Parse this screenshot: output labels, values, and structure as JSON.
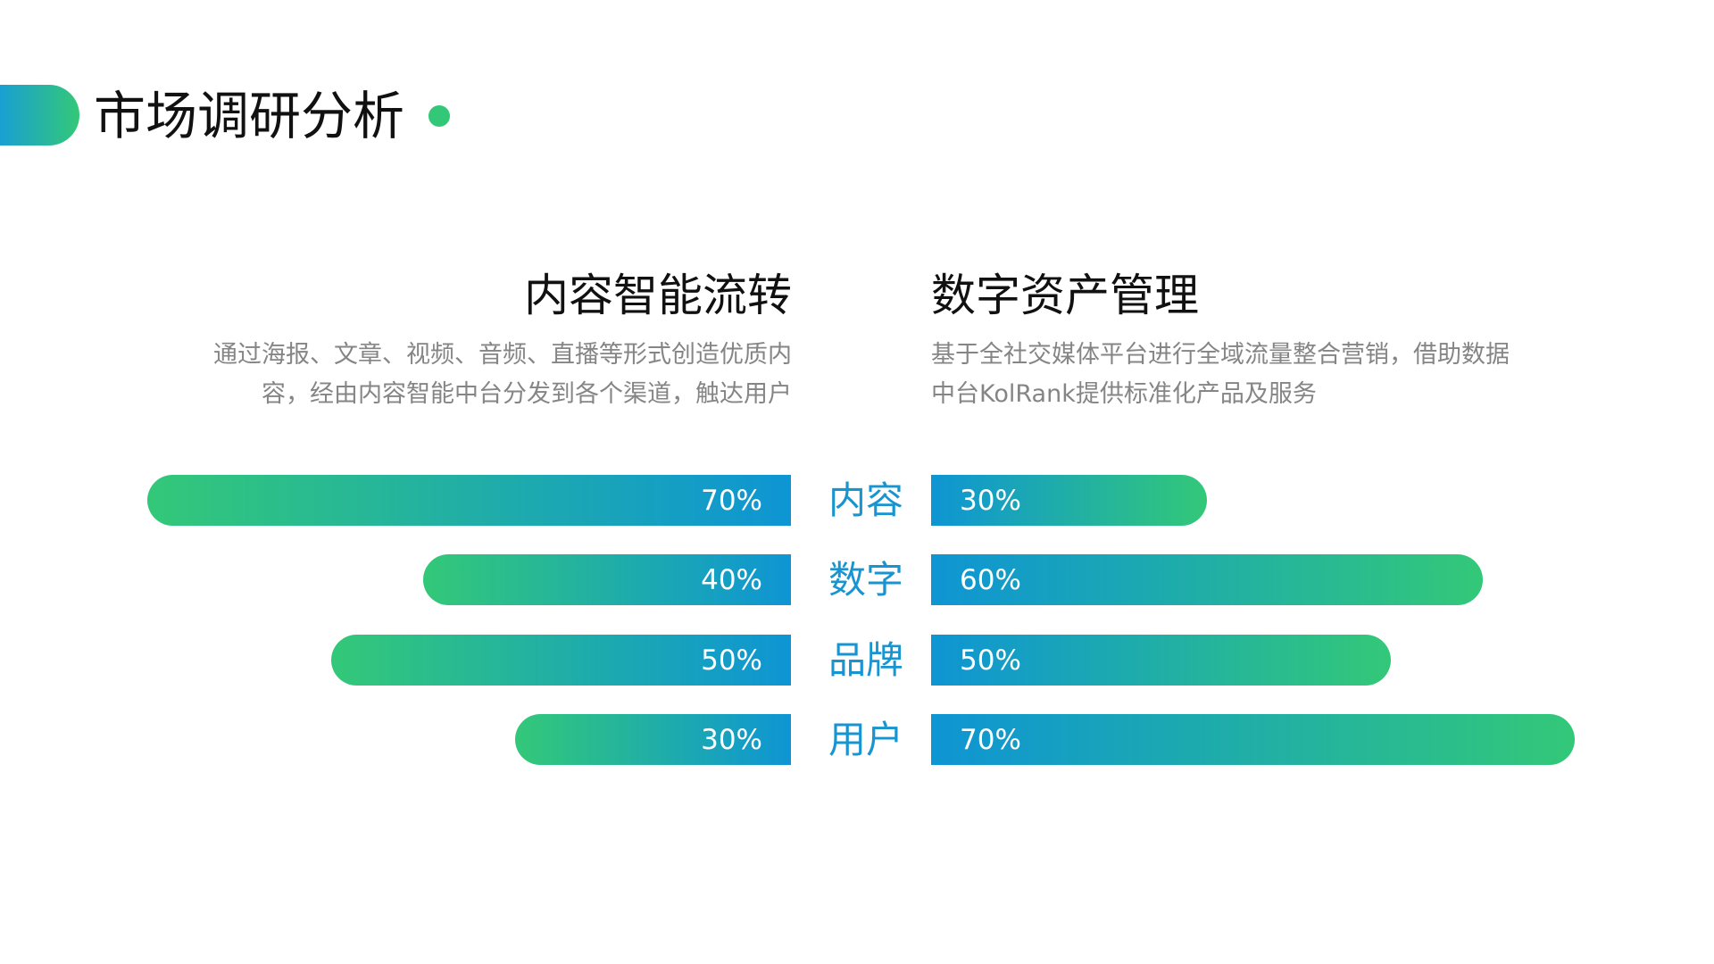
{
  "header": {
    "title": "市场调研分析"
  },
  "sections": {
    "left": {
      "title": "内容智能流转",
      "description_lines": [
        "通过海报、文章、视频、音频、直播等形式创造优质内",
        "容，经由内容智能中台分发到各个渠道，触达用户"
      ]
    },
    "right": {
      "title": "数字资产管理",
      "description_lines": [
        "基于全社交媒体平台进行全域流量整合营销，借助数据",
        "中台KolRank提供标准化产品及服务"
      ]
    }
  },
  "colors": {
    "green": "#33c878",
    "blue": "#0e95d4",
    "label_blue": "#1894d0",
    "title": "#111111",
    "desc": "#858585"
  },
  "chart_data": {
    "type": "bar",
    "orientation": "horizontal-diverging",
    "categories": [
      "内容",
      "数字",
      "品牌",
      "用户"
    ],
    "series": [
      {
        "values": [
          70,
          40,
          50,
          30
        ],
        "labels": [
          "70%",
          "40%",
          "50%",
          "30%"
        ]
      },
      {
        "values": [
          30,
          60,
          50,
          70
        ],
        "labels": [
          "30%",
          "60%",
          "50%",
          "70%"
        ]
      }
    ],
    "xlim": [
      0,
      100
    ]
  }
}
